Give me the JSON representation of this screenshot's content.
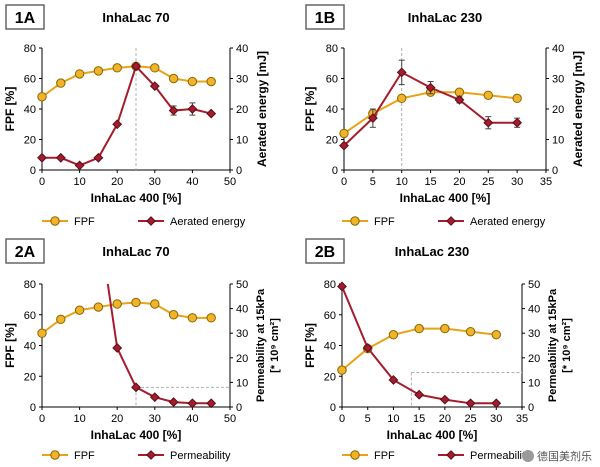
{
  "colors": {
    "fpf_line": "#e8a317",
    "fpf_marker_fill": "#f0b429",
    "fpf_marker_stroke": "#8a6400",
    "red_line": "#a51c2d",
    "red_marker_fill": "#a51c2d",
    "red_marker_stroke": "#5a0d18",
    "axis": "#000000",
    "guide": "#b0b0b0",
    "label_box": "#666666"
  },
  "watermark": "德国美剂乐",
  "chart_data": [
    {
      "panel_label": "1A",
      "type": "line",
      "title": "InhaLac 70",
      "xlabel": "InhaLac 400 [%]",
      "ylabel": "FPF [%]",
      "y2label": "Aerated energy [mJ]",
      "xlim": [
        0,
        50
      ],
      "ylim": [
        0,
        80
      ],
      "y2lim": [
        0,
        40
      ],
      "xticks": [
        "0",
        "10",
        "20",
        "30",
        "40",
        "50"
      ],
      "xtick_values": [
        0,
        10,
        20,
        30,
        40,
        50
      ],
      "yticks": [
        "0",
        "20",
        "40",
        "60",
        "80"
      ],
      "y2ticks": [
        "0",
        "10",
        "20",
        "30",
        "40"
      ],
      "guide": {
        "x": 25,
        "y2": null
      },
      "legend": [
        "FPF",
        "Aerated energy"
      ],
      "legend_position": "bottom",
      "series": [
        {
          "name": "FPF",
          "axis": "left",
          "marker": "circle",
          "x": [
            0,
            5,
            10,
            15,
            20,
            25,
            30,
            35,
            40,
            45
          ],
          "y": [
            48,
            57,
            63,
            65,
            67,
            68,
            67,
            60,
            58,
            58
          ]
        },
        {
          "name": "Aerated energy",
          "axis": "right",
          "marker": "diamond",
          "x": [
            0,
            5,
            10,
            15,
            20,
            25,
            30,
            35,
            40,
            45
          ],
          "y": [
            4,
            4,
            1.5,
            4,
            15,
            34,
            27.5,
            19.5,
            20,
            18.5
          ],
          "err": [
            0,
            0,
            0,
            0,
            0,
            0,
            0,
            1.5,
            2,
            0
          ]
        }
      ]
    },
    {
      "panel_label": "1B",
      "type": "line",
      "title": "InhaLac 230",
      "xlabel": "InhaLac 400 [%]",
      "ylabel": "FPF [%]",
      "y2label": "Aerated energy [mJ]",
      "xlim": [
        0,
        35
      ],
      "ylim": [
        0,
        80
      ],
      "y2lim": [
        0,
        40
      ],
      "xticks": [
        "0",
        "5",
        "10",
        "15",
        "20",
        "25",
        "30",
        "35"
      ],
      "xtick_values": [
        0,
        5,
        10,
        15,
        20,
        25,
        30,
        35
      ],
      "yticks": [
        "0",
        "20",
        "40",
        "60",
        "80"
      ],
      "y2ticks": [
        "0",
        "10",
        "20",
        "30",
        "40"
      ],
      "guide": {
        "x": 10,
        "y2": null
      },
      "legend": [
        "FPF",
        "Aerated energy"
      ],
      "legend_position": "bottom",
      "series": [
        {
          "name": "FPF",
          "axis": "left",
          "marker": "circle",
          "x": [
            0,
            5,
            10,
            15,
            20,
            25,
            30
          ],
          "y": [
            24,
            37,
            47,
            51,
            51,
            49,
            47
          ]
        },
        {
          "name": "Aerated energy",
          "axis": "right",
          "marker": "diamond",
          "x": [
            0,
            5,
            10,
            15,
            20,
            25,
            30
          ],
          "y": [
            8,
            17,
            32,
            27,
            23,
            15.5,
            15.5
          ],
          "err": [
            0,
            3,
            4,
            2,
            1,
            2,
            1.5
          ]
        }
      ]
    },
    {
      "panel_label": "2A",
      "type": "line",
      "title": "InhaLac 70",
      "xlabel": "InhaLac 400 [%]",
      "ylabel": "FPF [%]",
      "y2label": "Permeability at 15kPa [* 10⁹ cm²]",
      "xlim": [
        0,
        50
      ],
      "ylim": [
        0,
        80
      ],
      "y2lim": [
        0,
        50
      ],
      "xticks": [
        "0",
        "10",
        "20",
        "30",
        "40",
        "50"
      ],
      "xtick_values": [
        0,
        10,
        20,
        30,
        40,
        50
      ],
      "yticks": [
        "0",
        "20",
        "40",
        "60",
        "80"
      ],
      "y2ticks": [
        "0",
        "10",
        "20",
        "30",
        "40",
        "50"
      ],
      "guide": {
        "x": 25,
        "y2": 8
      },
      "legend": [
        "FPF",
        "Permeability"
      ],
      "legend_position": "bottom",
      "series": [
        {
          "name": "FPF",
          "axis": "left",
          "marker": "circle",
          "x": [
            0,
            5,
            10,
            15,
            20,
            25,
            30,
            35,
            40,
            45
          ],
          "y": [
            48,
            57,
            63,
            65,
            67,
            68,
            67,
            60,
            58,
            58
          ]
        },
        {
          "name": "Permeability",
          "axis": "right",
          "marker": "diamond",
          "x": [
            17.5,
            20,
            25,
            30,
            35,
            40,
            45
          ],
          "y": [
            50,
            24,
            8,
            4,
            2,
            1.5,
            1.5
          ],
          "marker_from": 1
        }
      ]
    },
    {
      "panel_label": "2B",
      "type": "line",
      "title": "InhaLac 230",
      "xlabel": "InhaLac 400 [%]",
      "ylabel": "FPF [%]",
      "y2label": "Permeability at 15kPa [* 10⁹ cm²]",
      "xlim": [
        0,
        35
      ],
      "ylim": [
        0,
        80
      ],
      "y2lim": [
        0,
        50
      ],
      "xticks": [
        "0",
        "5",
        "10",
        "15",
        "20",
        "25",
        "30",
        "35"
      ],
      "xtick_values": [
        0,
        5,
        10,
        15,
        20,
        25,
        30,
        35
      ],
      "yticks": [
        "0",
        "20",
        "40",
        "60",
        "80"
      ],
      "y2ticks": [
        "0",
        "10",
        "20",
        "30",
        "40",
        "50"
      ],
      "guide": {
        "x": 13.5,
        "y2": 14
      },
      "legend": [
        "FPF",
        "Permeability"
      ],
      "legend_position": "bottom",
      "series": [
        {
          "name": "FPF",
          "axis": "left",
          "marker": "circle",
          "x": [
            0,
            5,
            10,
            15,
            20,
            25,
            30
          ],
          "y": [
            24,
            38,
            47,
            51,
            51,
            49,
            47
          ]
        },
        {
          "name": "Permeability",
          "axis": "right",
          "marker": "diamond",
          "x": [
            0,
            5,
            10,
            15,
            20,
            25,
            30
          ],
          "y": [
            49,
            24,
            11,
            5,
            3,
            1.5,
            1.5
          ]
        }
      ]
    }
  ]
}
